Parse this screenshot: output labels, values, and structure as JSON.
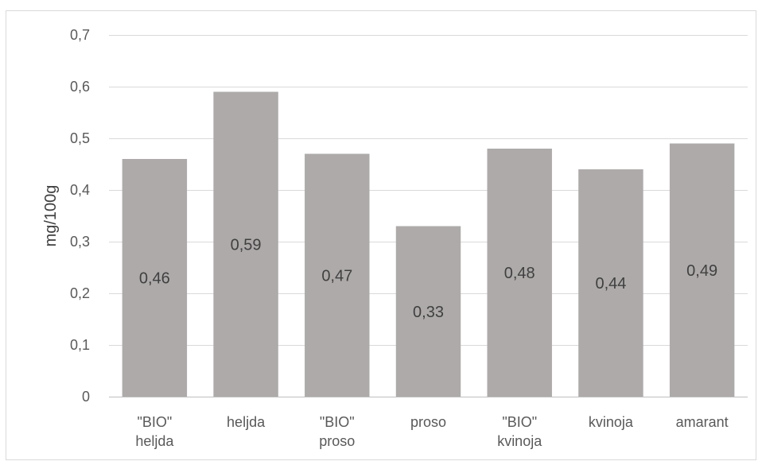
{
  "chart_data": {
    "type": "bar",
    "categories": [
      [
        "\"BIO\"",
        "heljda"
      ],
      [
        "heljda"
      ],
      [
        "\"BIO\"",
        "proso"
      ],
      [
        "proso"
      ],
      [
        "\"BIO\"",
        "kvinoja"
      ],
      [
        "kvinoja"
      ],
      [
        "amarant"
      ]
    ],
    "values": [
      0.46,
      0.59,
      0.47,
      0.33,
      0.48,
      0.44,
      0.49
    ],
    "data_labels": [
      "0,46",
      "0,59",
      "0,47",
      "0,33",
      "0,48",
      "0,44",
      "0,49"
    ],
    "title": "",
    "xlabel": "",
    "ylabel": "mg/100g",
    "ylim": [
      0,
      0.7
    ],
    "yticks": [
      0,
      0.1,
      0.2,
      0.3,
      0.4,
      0.5,
      0.6,
      0.7
    ],
    "ytick_labels": [
      "0",
      "0,1",
      "0,2",
      "0,3",
      "0,4",
      "0,5",
      "0,6",
      "0,7"
    ],
    "grid": true,
    "legend": "none",
    "colors": {
      "bar": "#aeaaaa",
      "grid": "#d9d9d9",
      "axis": "#bfbfbf",
      "text": "#595959",
      "data_label": "#404040"
    }
  }
}
